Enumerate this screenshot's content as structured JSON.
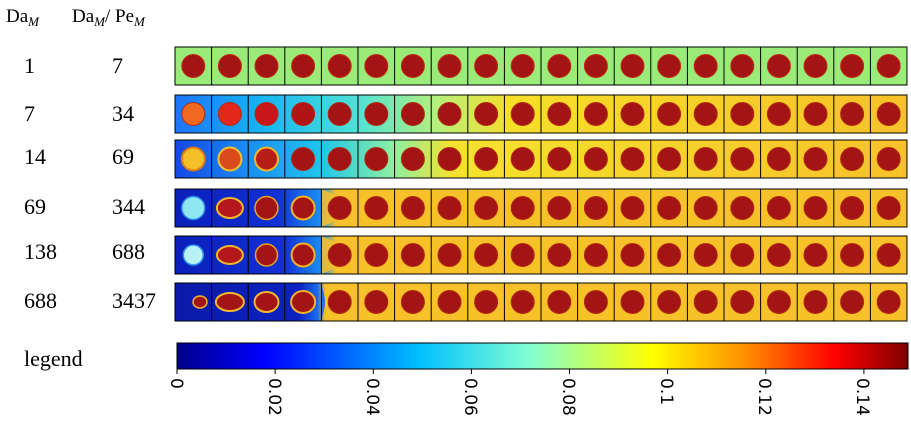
{
  "header": {
    "da_base": "Da",
    "da_sub": "M",
    "ratio_base": "Da",
    "ratio_sub": "M",
    "ratio_sep": "/ Pe",
    "ratio_sub2": "M"
  },
  "rows": [
    {
      "da": "1",
      "ratio": "7"
    },
    {
      "da": "7",
      "ratio": "34"
    },
    {
      "da": "14",
      "ratio": "69"
    },
    {
      "da": "69",
      "ratio": "344"
    },
    {
      "da": "138",
      "ratio": "688"
    },
    {
      "da": "688",
      "ratio": "3437"
    }
  ],
  "grid": {
    "cells_per_row": 20
  },
  "legend": {
    "label": "legend",
    "ticks": [
      "0",
      "0.02",
      "0.04",
      "0.06",
      "0.08",
      "0.1",
      "0.12",
      "0.14"
    ],
    "max_value": 0.149,
    "colors": [
      "#00008b",
      "#0000ff",
      "#00bfff",
      "#7fffd4",
      "#ffff00",
      "#ff8c00",
      "#ff0000",
      "#800000"
    ]
  }
}
